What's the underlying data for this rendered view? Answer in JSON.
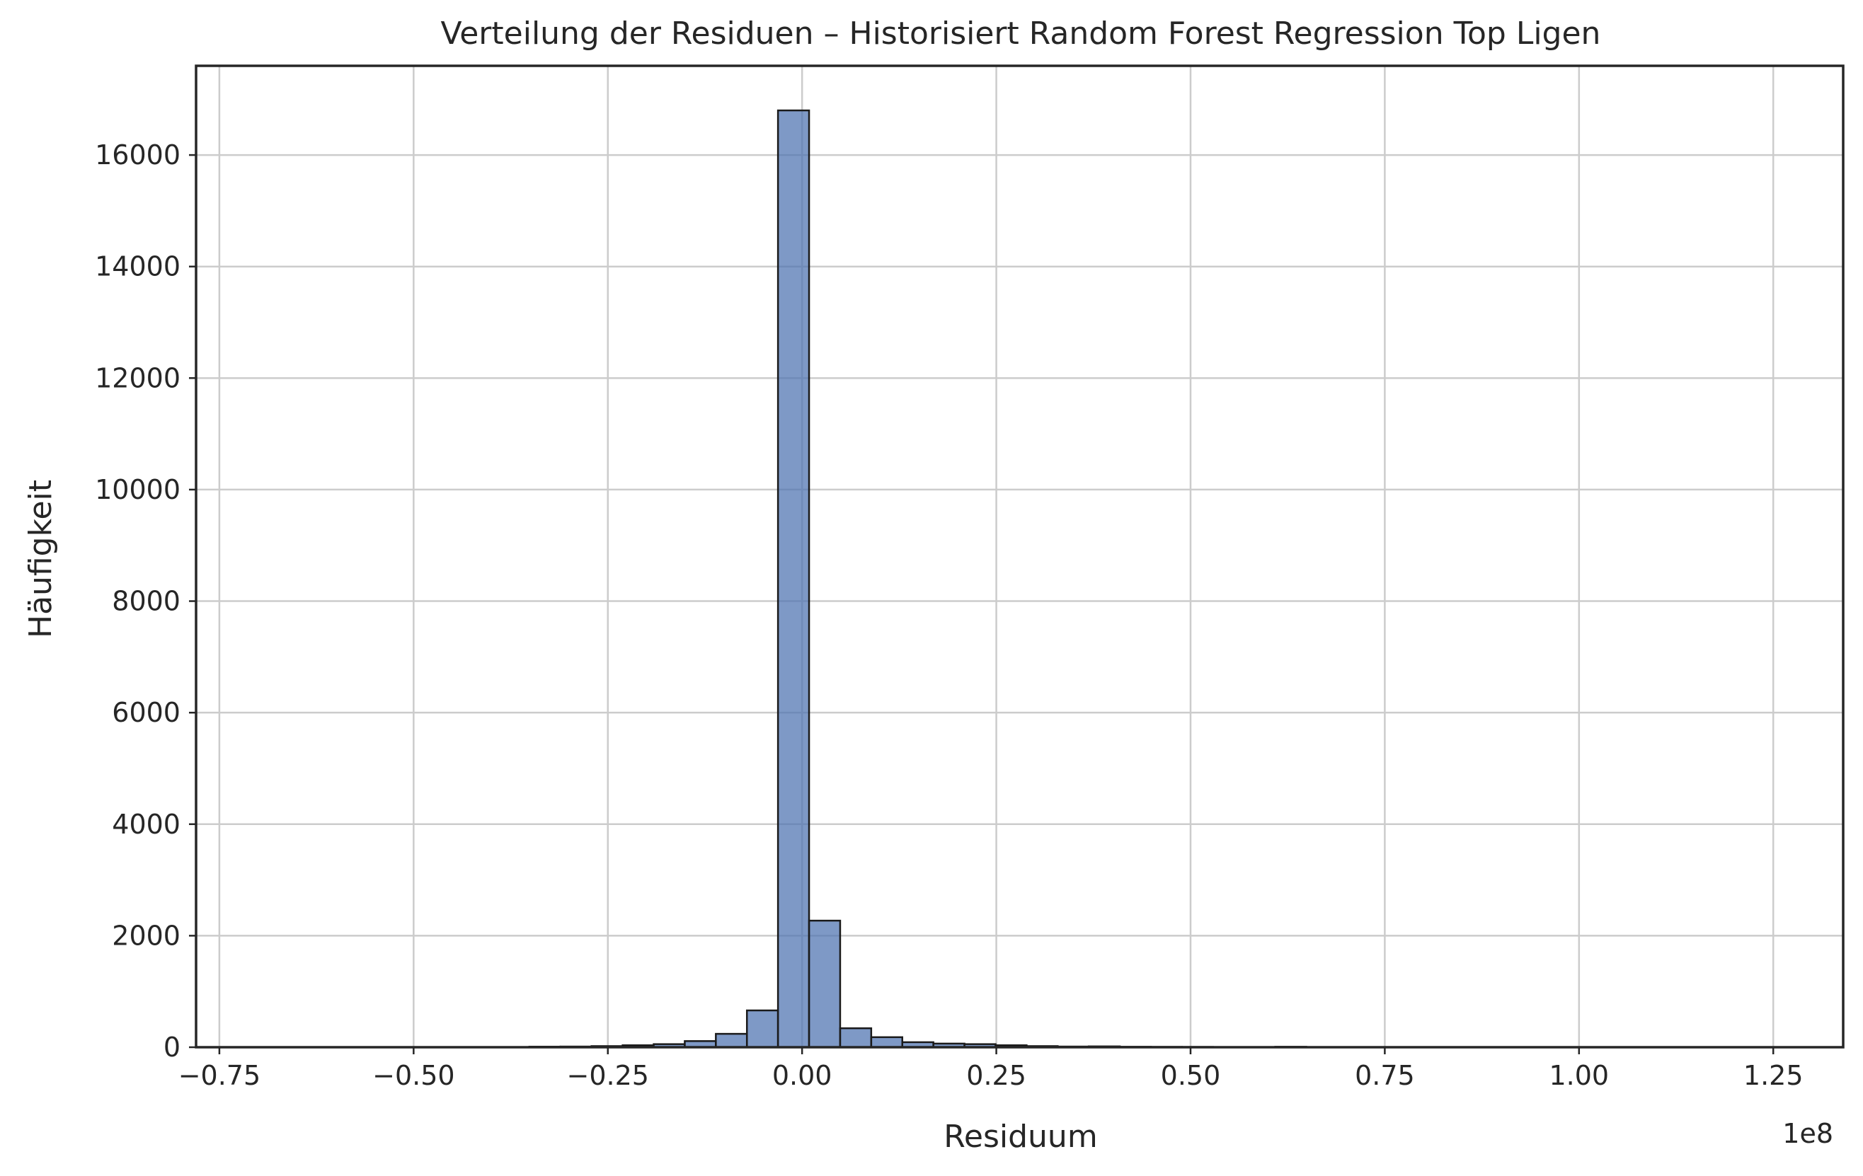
{
  "chart_data": {
    "type": "bar",
    "title": "Verteilung der Residuen – Historisiert Random Forest Regression Top Ligen",
    "xlabel": "Residuum",
    "ylabel": "Häufigkeit",
    "x_offset_label": "1e8",
    "xlim": [
      -0.78,
      1.34
    ],
    "ylim": [
      0,
      17600
    ],
    "grid": true,
    "x_ticks": [
      {
        "value": -0.75,
        "label": "−0.75"
      },
      {
        "value": -0.5,
        "label": "−0.50"
      },
      {
        "value": -0.25,
        "label": "−0.25"
      },
      {
        "value": 0.0,
        "label": "0.00"
      },
      {
        "value": 0.25,
        "label": "0.25"
      },
      {
        "value": 0.5,
        "label": "0.50"
      },
      {
        "value": 0.75,
        "label": "0.75"
      },
      {
        "value": 1.0,
        "label": "1.00"
      },
      {
        "value": 1.25,
        "label": "1.25"
      }
    ],
    "y_ticks": [
      {
        "value": 0,
        "label": "0"
      },
      {
        "value": 2000,
        "label": "2000"
      },
      {
        "value": 4000,
        "label": "4000"
      },
      {
        "value": 6000,
        "label": "6000"
      },
      {
        "value": 8000,
        "label": "8000"
      },
      {
        "value": 10000,
        "label": "10000"
      },
      {
        "value": 12000,
        "label": "12000"
      },
      {
        "value": 14000,
        "label": "14000"
      },
      {
        "value": 16000,
        "label": "16000"
      }
    ],
    "bins": [
      {
        "x0": -0.351,
        "x1": -0.311,
        "count": 10
      },
      {
        "x0": -0.311,
        "x1": -0.271,
        "count": 12
      },
      {
        "x0": -0.271,
        "x1": -0.231,
        "count": 20
      },
      {
        "x0": -0.231,
        "x1": -0.191,
        "count": 35
      },
      {
        "x0": -0.191,
        "x1": -0.151,
        "count": 55
      },
      {
        "x0": -0.151,
        "x1": -0.111,
        "count": 110
      },
      {
        "x0": -0.111,
        "x1": -0.071,
        "count": 240
      },
      {
        "x0": -0.071,
        "x1": -0.031,
        "count": 660
      },
      {
        "x0": -0.031,
        "x1": 0.009,
        "count": 16800
      },
      {
        "x0": 0.009,
        "x1": 0.049,
        "count": 2270
      },
      {
        "x0": 0.049,
        "x1": 0.089,
        "count": 340
      },
      {
        "x0": 0.089,
        "x1": 0.129,
        "count": 180
      },
      {
        "x0": 0.129,
        "x1": 0.169,
        "count": 90
      },
      {
        "x0": 0.169,
        "x1": 0.209,
        "count": 65
      },
      {
        "x0": 0.209,
        "x1": 0.249,
        "count": 55
      },
      {
        "x0": 0.249,
        "x1": 0.289,
        "count": 35
      },
      {
        "x0": 0.289,
        "x1": 0.329,
        "count": 20
      },
      {
        "x0": 0.329,
        "x1": 0.369,
        "count": 12
      },
      {
        "x0": 0.369,
        "x1": 0.409,
        "count": 15
      },
      {
        "x0": 0.409,
        "x1": 0.449,
        "count": 8
      },
      {
        "x0": 0.449,
        "x1": 0.489,
        "count": 6
      },
      {
        "x0": 0.489,
        "x1": 0.529,
        "count": 5
      },
      {
        "x0": 0.529,
        "x1": 0.569,
        "count": 3
      },
      {
        "x0": 0.569,
        "x1": 0.609,
        "count": 3
      },
      {
        "x0": 0.609,
        "x1": 0.649,
        "count": 8
      }
    ],
    "colors": {
      "bar_fill": "#4c72b0",
      "bar_edge": "#1a1a1a",
      "grid": "#cccccc",
      "frame": "#262626",
      "text": "#262626"
    }
  }
}
